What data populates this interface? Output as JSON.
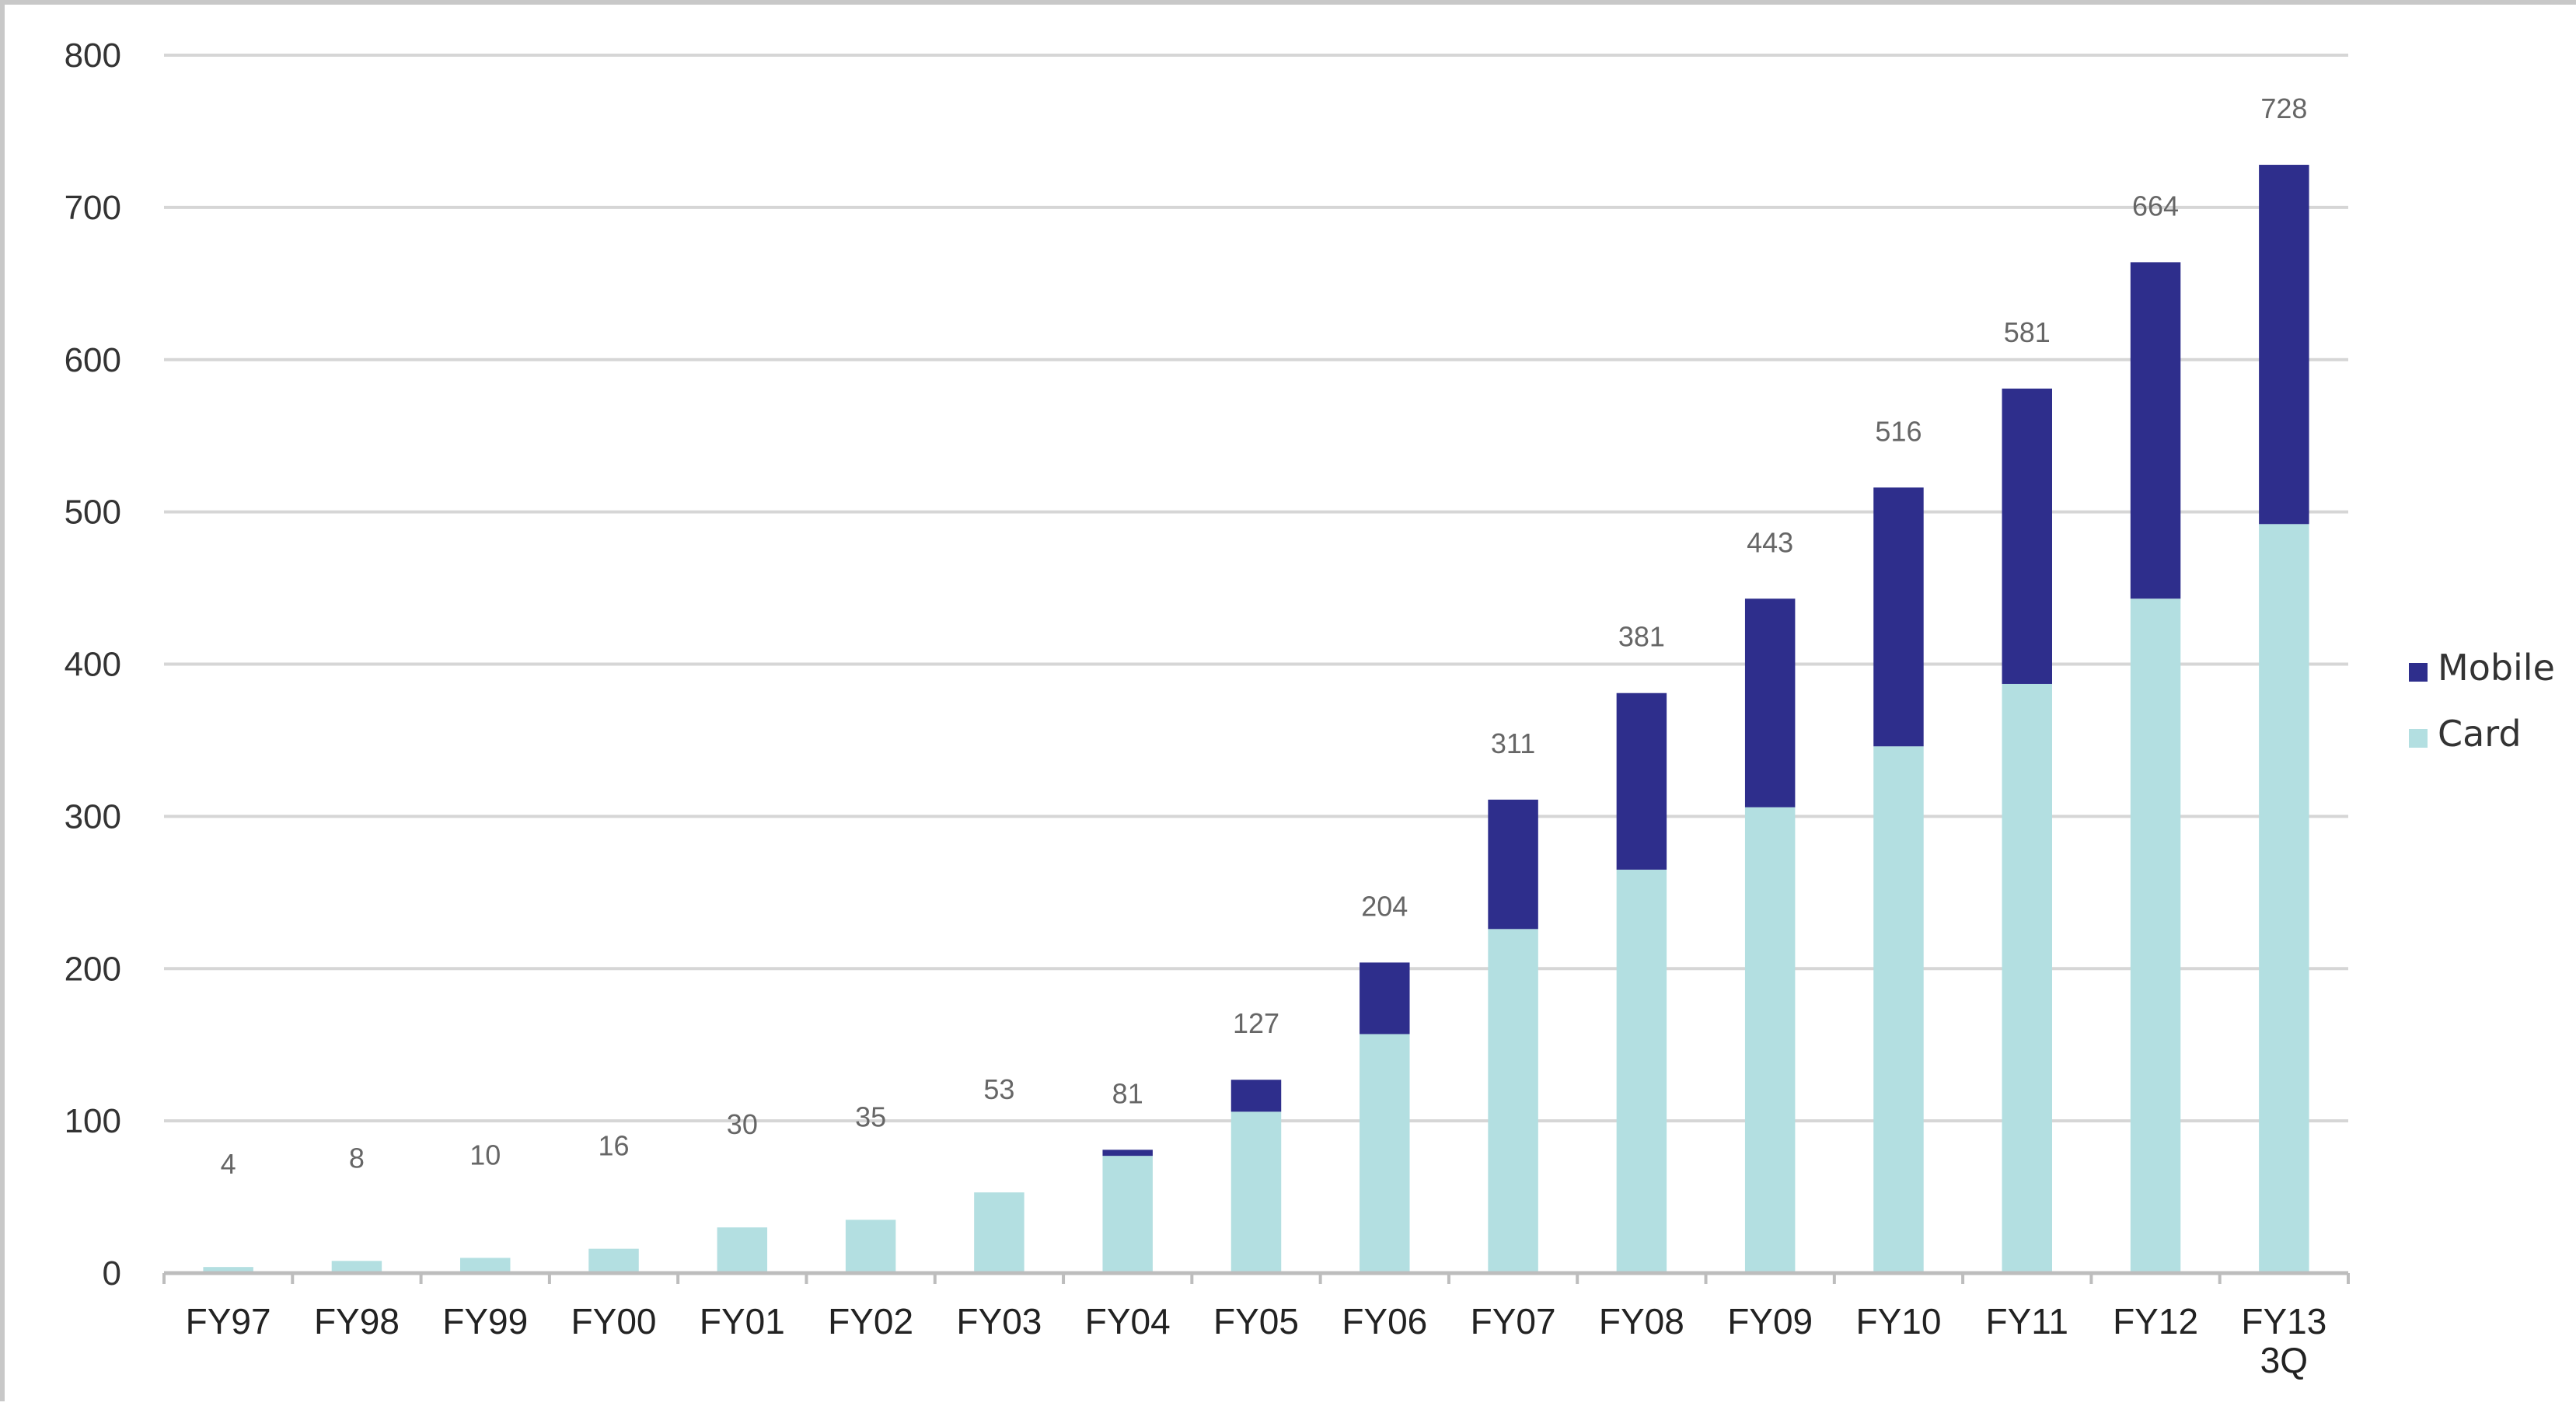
{
  "chart_data": {
    "type": "bar",
    "stacked": true,
    "categories": [
      "FY97",
      "FY98",
      "FY99",
      "FY00",
      "FY01",
      "FY02",
      "FY03",
      "FY04",
      "FY05",
      "FY06",
      "FY07",
      "FY08",
      "FY09",
      "FY10",
      "FY11",
      "FY12",
      "FY13\n3Q"
    ],
    "series": [
      {
        "name": "Card",
        "color": "#b3dfe1",
        "values": [
          4,
          8,
          10,
          16,
          30,
          35,
          53,
          77,
          106,
          157,
          226,
          265,
          306,
          346,
          387,
          443,
          492
        ]
      },
      {
        "name": "Mobile",
        "color": "#2e2e8c",
        "values": [
          0,
          0,
          0,
          0,
          0,
          0,
          0,
          4,
          21,
          47,
          85,
          116,
          137,
          170,
          194,
          221,
          236
        ]
      }
    ],
    "totals": [
      4,
      8,
      10,
      16,
      30,
      35,
      53,
      81,
      127,
      204,
      311,
      381,
      443,
      516,
      581,
      664,
      728
    ],
    "ylim": [
      0,
      800
    ],
    "yticks": [
      0,
      100,
      200,
      300,
      400,
      500,
      600,
      700,
      800
    ],
    "grid": true,
    "legend": {
      "position": "right",
      "entries": [
        "Mobile",
        "Card"
      ]
    }
  }
}
